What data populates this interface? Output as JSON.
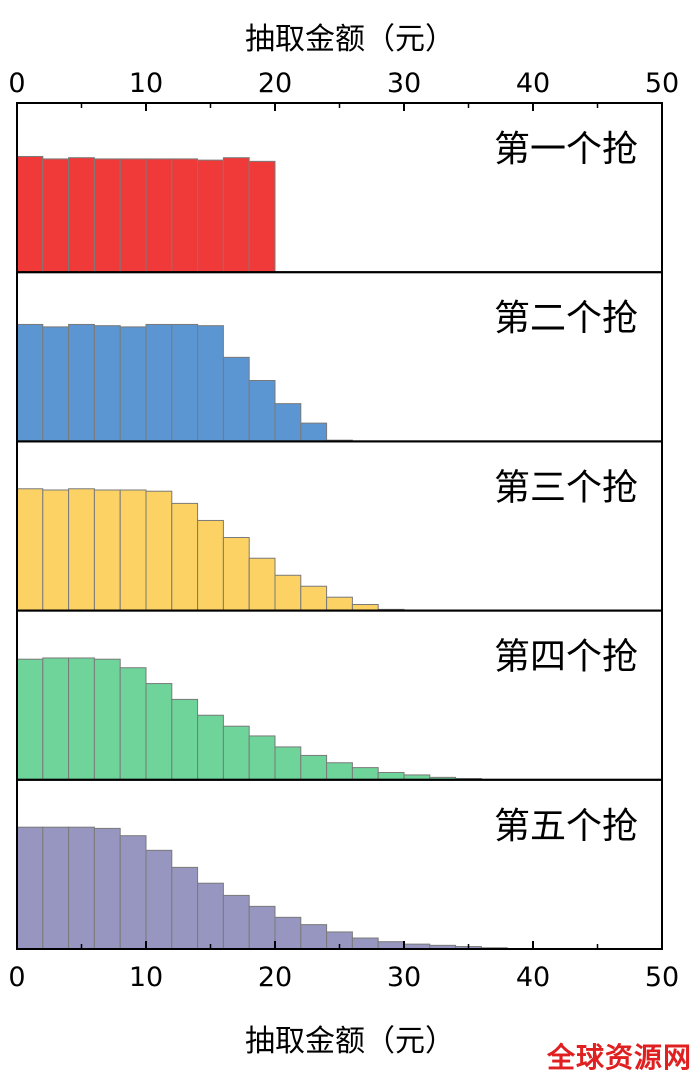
{
  "chart_data": {
    "type": "bar",
    "xlabel": "抽取金额（元）",
    "xlim": [
      0,
      50
    ],
    "xticks": [
      0,
      10,
      20,
      30,
      40,
      50
    ],
    "bin_width": 2,
    "bins_start": [
      0,
      2,
      4,
      6,
      8,
      10,
      12,
      14,
      16,
      18,
      20,
      22,
      24,
      26,
      28,
      30,
      32,
      34,
      36,
      38
    ],
    "series": [
      {
        "name": "第一个抢",
        "color": "#f03a3a",
        "values": [
          0.95,
          0.93,
          0.94,
          0.93,
          0.93,
          0.93,
          0.93,
          0.92,
          0.94,
          0.91
        ]
      },
      {
        "name": "第二个抢",
        "color": "#5b96d2",
        "values": [
          0.96,
          0.94,
          0.96,
          0.95,
          0.94,
          0.96,
          0.96,
          0.95,
          0.69,
          0.5,
          0.31,
          0.15,
          0.01
        ]
      },
      {
        "name": "第三个抢",
        "color": "#fcd264",
        "values": [
          1.0,
          0.99,
          1.0,
          0.99,
          0.99,
          0.98,
          0.88,
          0.74,
          0.6,
          0.43,
          0.29,
          0.2,
          0.11,
          0.05,
          0.01
        ]
      },
      {
        "name": "第四个抢",
        "color": "#6fd49a",
        "values": [
          0.99,
          1.0,
          1.0,
          0.99,
          0.92,
          0.79,
          0.66,
          0.53,
          0.44,
          0.36,
          0.27,
          0.2,
          0.14,
          0.1,
          0.06,
          0.04,
          0.02,
          0.01
        ]
      },
      {
        "name": "第五个抢",
        "color": "#9696c0",
        "values": [
          1.0,
          1.0,
          1.0,
          0.99,
          0.93,
          0.81,
          0.67,
          0.54,
          0.44,
          0.35,
          0.26,
          0.2,
          0.14,
          0.09,
          0.06,
          0.04,
          0.03,
          0.02,
          0.01
        ]
      }
    ],
    "grid": false,
    "legend": "panel labels at top-right of each panel"
  },
  "watermark": "全球资源网"
}
